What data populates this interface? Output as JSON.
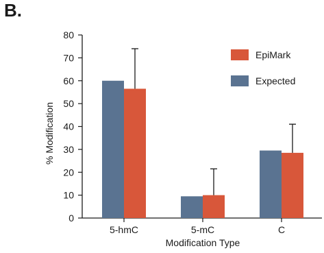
{
  "panel_label": "B.",
  "chart_data": {
    "type": "bar",
    "title": "",
    "xlabel": "Modification Type",
    "ylabel": "% Modification",
    "ylim": [
      0,
      80
    ],
    "yticks": [
      0,
      10,
      20,
      30,
      40,
      50,
      60,
      70,
      80
    ],
    "categories": [
      "5-hmC",
      "5-mC",
      "C"
    ],
    "series": [
      {
        "name": "Expected",
        "color": "#5a7391",
        "values": [
          60,
          9.5,
          29.5
        ],
        "error": null
      },
      {
        "name": "EpiMark",
        "color": "#d8573a",
        "values": [
          56.5,
          10,
          28.5
        ],
        "error": [
          17.5,
          11.5,
          12.5
        ]
      }
    ],
    "legend": {
      "placement": "top-right",
      "order": [
        "EpiMark",
        "Expected"
      ]
    },
    "grid": false
  }
}
